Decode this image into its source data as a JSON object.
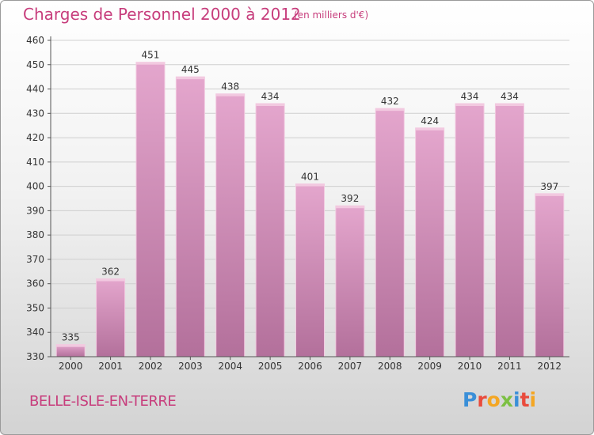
{
  "header": {
    "title": "Charges de Personnel 2000 à 2012",
    "subtitle": "(en milliers d'€)"
  },
  "footer": {
    "place": "BELLE-ISLE-EN-TERRE",
    "logo_letters": [
      "P",
      "r",
      "o",
      "x",
      "i",
      "t",
      "i"
    ],
    "logo_colors": [
      "#3a8fd8",
      "#e94b3c",
      "#f4a623",
      "#7cc043",
      "#3a8fd8",
      "#e94b3c",
      "#f4a623"
    ]
  },
  "colors": {
    "bar_top": "#e4a6cd",
    "bar_bottom": "#b3709b",
    "bar_edge": "#f2c9e0",
    "text": "#333333",
    "grid": "#cfcfcf"
  },
  "chart_data": {
    "type": "bar",
    "title": "Charges de Personnel 2000 à 2012",
    "subtitle": "(en milliers d'€)",
    "categories": [
      "2000",
      "2001",
      "2002",
      "2003",
      "2004",
      "2005",
      "2006",
      "2007",
      "2008",
      "2009",
      "2010",
      "2011",
      "2012"
    ],
    "values": [
      335,
      362,
      451,
      445,
      438,
      434,
      401,
      392,
      432,
      424,
      434,
      434,
      397
    ],
    "ylim": [
      330,
      460
    ],
    "yticks": [
      330,
      340,
      350,
      360,
      370,
      380,
      390,
      400,
      410,
      420,
      430,
      440,
      450,
      460
    ],
    "grid": true,
    "data_labels": true
  }
}
